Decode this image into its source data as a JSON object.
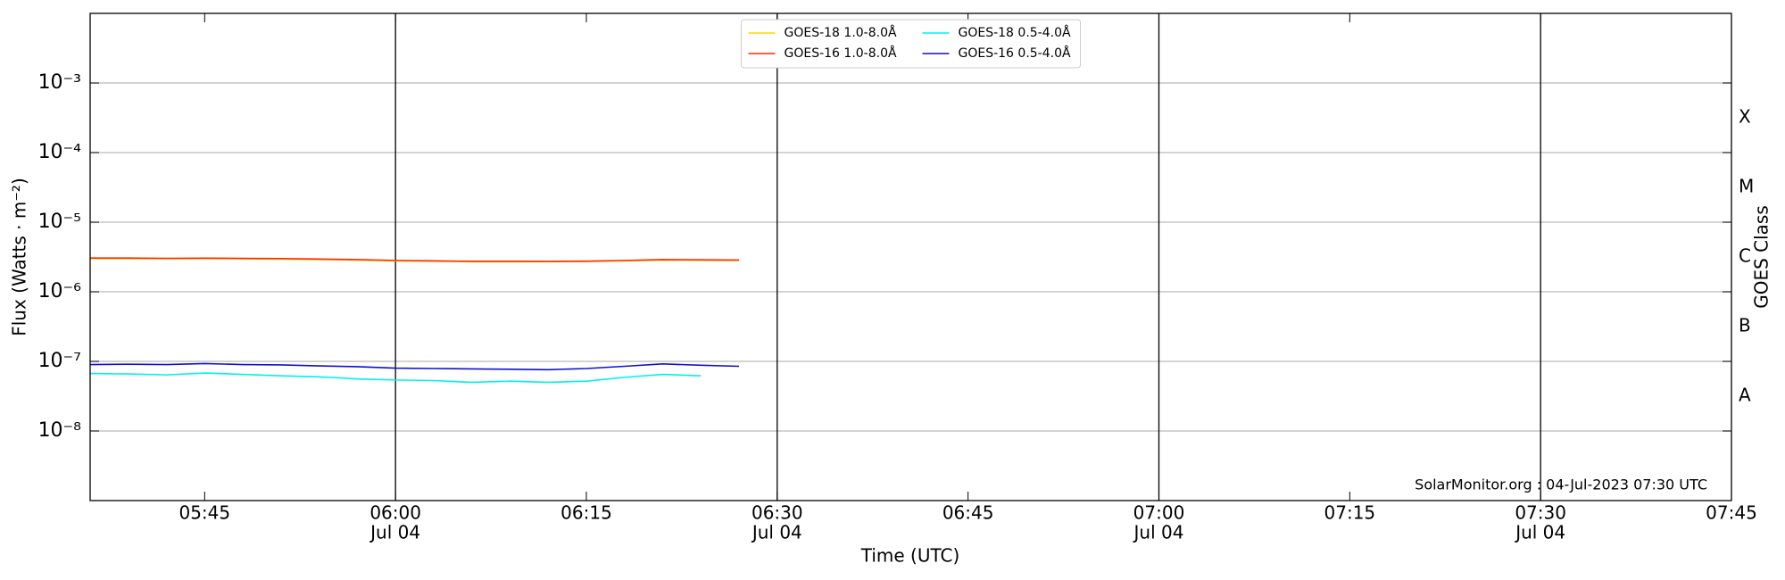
{
  "chart_data": {
    "type": "line",
    "ylabel": "Flux (Watts · m⁻²)",
    "xlabel": "Time (UTC)",
    "y2label": "GOES Class",
    "annotation": "SolarMonitor.org : 04-Jul-2023 07:30 UTC",
    "log_y": true,
    "grid": true,
    "legend": "upper center",
    "ylim": [
      1e-09,
      0.01
    ],
    "yticks": [
      {
        "value": 1e-08,
        "label": "10⁻⁸"
      },
      {
        "value": 1e-07,
        "label": "10⁻⁷"
      },
      {
        "value": 1e-06,
        "label": "10⁻⁶"
      },
      {
        "value": 1e-05,
        "label": "10⁻⁵"
      },
      {
        "value": 0.0001,
        "label": "10⁻⁴"
      },
      {
        "value": 0.001,
        "label": "10⁻³"
      }
    ],
    "class_labels": [
      {
        "value": 1e-08,
        "label": "A"
      },
      {
        "value": 1e-07,
        "label": "B"
      },
      {
        "value": 1e-06,
        "label": "C"
      },
      {
        "value": 1e-05,
        "label": "M"
      },
      {
        "value": 0.0001,
        "label": "X"
      }
    ],
    "xlim": [
      "05:36",
      "07:45"
    ],
    "xticks": [
      {
        "value": "05:45",
        "label": "05:45"
      },
      {
        "value": "06:00",
        "label": "06:00",
        "sublabel": "Jul 04"
      },
      {
        "value": "06:15",
        "label": "06:15"
      },
      {
        "value": "06:30",
        "label": "06:30",
        "sublabel": "Jul 04"
      },
      {
        "value": "06:45",
        "label": "06:45"
      },
      {
        "value": "07:00",
        "label": "07:00",
        "sublabel": "Jul 04"
      },
      {
        "value": "07:15",
        "label": "07:15"
      },
      {
        "value": "07:30",
        "label": "07:30",
        "sublabel": "Jul 04"
      },
      {
        "value": "07:45",
        "label": "07:45"
      }
    ],
    "vlines": [
      "06:00",
      "06:30",
      "07:00",
      "07:30"
    ],
    "x": [
      "05:36",
      "05:39",
      "05:42",
      "05:45",
      "05:48",
      "05:51",
      "05:54",
      "05:57",
      "06:00",
      "06:03",
      "06:06",
      "06:09",
      "06:12",
      "06:15",
      "06:18",
      "06:21",
      "06:24",
      "06:27"
    ],
    "series": [
      {
        "name": "GOES-18 1.0-8.0Å",
        "color": "#ffd700",
        "values": [
          3e-06,
          3e-06,
          2.98e-06,
          3e-06,
          2.97e-06,
          2.95e-06,
          2.9e-06,
          2.86e-06,
          2.78e-06,
          2.74e-06,
          2.7e-06,
          2.7e-06,
          2.7e-06,
          2.72e-06,
          2.78e-06,
          2.86e-06,
          2.84e-06,
          2.82e-06
        ]
      },
      {
        "name": "GOES-16 1.0-8.0Å",
        "color": "#ff2a00",
        "values": [
          3.05e-06,
          3.05e-06,
          3.02e-06,
          3.04e-06,
          3.02e-06,
          3e-06,
          2.95e-06,
          2.9e-06,
          2.82e-06,
          2.78e-06,
          2.74e-06,
          2.74e-06,
          2.73e-06,
          2.75e-06,
          2.82e-06,
          2.9e-06,
          2.88e-06,
          2.86e-06
        ]
      },
      {
        "name": "GOES-18 0.5-4.0Å",
        "color": "#00f0f0",
        "values": [
          6.7e-08,
          6.6e-08,
          6.4e-08,
          6.8e-08,
          6.5e-08,
          6.2e-08,
          6e-08,
          5.6e-08,
          5.4e-08,
          5.3e-08,
          5e-08,
          5.2e-08,
          5e-08,
          5.2e-08,
          5.9e-08,
          6.5e-08,
          6.2e-08,
          null
        ]
      },
      {
        "name": "GOES-16 0.5-4.0Å",
        "color": "#1010d0",
        "values": [
          9e-08,
          9.1e-08,
          9e-08,
          9.3e-08,
          9e-08,
          8.9e-08,
          8.6e-08,
          8.4e-08,
          8e-08,
          7.9e-08,
          7.8e-08,
          7.7e-08,
          7.6e-08,
          7.9e-08,
          8.5e-08,
          9.2e-08,
          8.8e-08,
          8.5e-08
        ]
      }
    ]
  }
}
